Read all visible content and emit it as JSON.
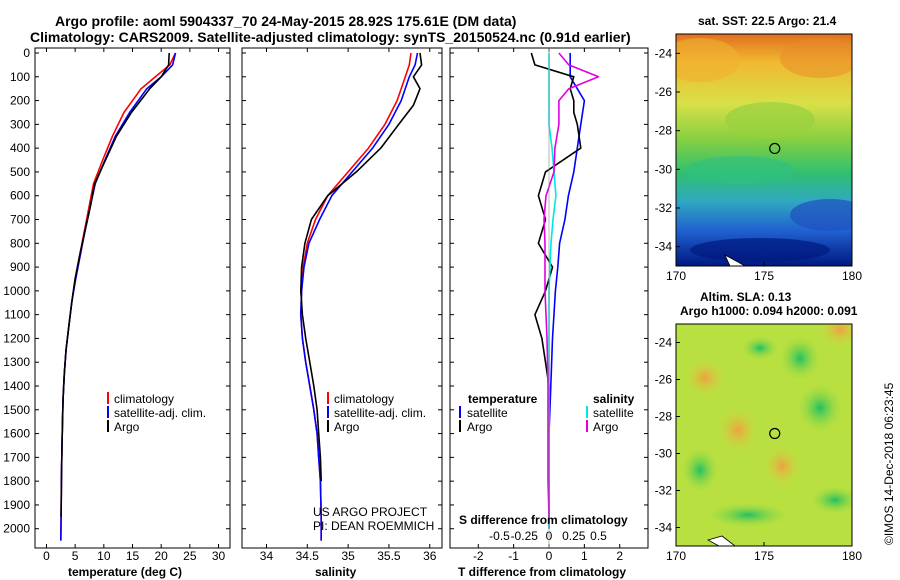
{
  "header": {
    "line1": "Argo profile: aoml 5904337_70 24-May-2015 28.92S 175.61E (DM data)",
    "line2": "Climatology: CARS2009. Satellite-adjusted climatology: synTS_20150524.nc (0.91d earlier)"
  },
  "colors": {
    "climatology": "#ff0000",
    "satellite": "#0000ff",
    "argo": "#000000",
    "satellite_salinity": "#00e5e5",
    "argo_salinity": "#e000e0"
  },
  "depth_axis": {
    "ticks": [
      "0",
      "100",
      "200",
      "300",
      "400",
      "500",
      "600",
      "700",
      "800",
      "900",
      "1000",
      "1100",
      "1200",
      "1300",
      "1400",
      "1500",
      "1600",
      "1700",
      "1800",
      "1900",
      "2000"
    ]
  },
  "panels": {
    "temperature": {
      "xlabel": "temperature (deg C)",
      "xticks": [
        "0",
        "5",
        "10",
        "15",
        "20",
        "25",
        "30"
      ],
      "legend": [
        "climatology",
        "satellite-adj. clim.",
        "Argo"
      ]
    },
    "salinity": {
      "xlabel": "salinity",
      "xticks": [
        "34",
        "34.5",
        "35",
        "35.5",
        "36"
      ],
      "legend": [
        "climatology",
        "satellite-adj. clim.",
        "Argo"
      ],
      "credit_line1": "US ARGO PROJECT",
      "credit_line2": "PI: DEAN ROEMMICH"
    },
    "difference": {
      "xlabel": "T difference from climatology",
      "xticks": [
        "-2",
        "-1",
        "0",
        "1",
        "2"
      ],
      "s_axis_title": "S difference from climatology",
      "s_xticks": [
        "-0.5",
        "-0.25",
        "0",
        "0.25",
        "0.5"
      ],
      "legend_temperature_title": "temperature",
      "legend_temperature": [
        "satellite",
        "Argo"
      ],
      "legend_salinity_title": "salinity",
      "legend_salinity": [
        "satellite",
        "Argo"
      ]
    }
  },
  "maps": {
    "sst": {
      "title": "sat. SST: 22.5 Argo: 21.4",
      "yticks": [
        "-24",
        "-26",
        "-28",
        "-30",
        "-32",
        "-34"
      ],
      "xticks": [
        "170",
        "175",
        "180"
      ]
    },
    "sla": {
      "title_line1": "Altim. SLA: 0.13",
      "title_line2": "Argo h1000: 0.094 h2000: 0.091",
      "yticks": [
        "-24",
        "-26",
        "-28",
        "-30",
        "-32",
        "-34"
      ],
      "xticks": [
        "170",
        "175",
        "180"
      ]
    },
    "profile_location": {
      "lon": 175.61,
      "lat": -28.92
    }
  },
  "watermark": "©IMOS 14-Dec-2018 06:23:45",
  "chart_data": [
    {
      "type": "line",
      "title": "",
      "xlabel": "temperature (deg C)",
      "ylabel": "",
      "xlim": [
        -2,
        32
      ],
      "ylim": [
        2060,
        0
      ],
      "series": [
        {
          "name": "climatology",
          "x": [
            22.5,
            21.5,
            19.0,
            16.5,
            13.5,
            11.5,
            9.8,
            8.2,
            7.4,
            6.6,
            5.8,
            5.0,
            4.4,
            3.9,
            3.4,
            3.1,
            2.9,
            2.8,
            2.7,
            2.6,
            2.55,
            2.5
          ],
          "y": [
            0,
            50,
            100,
            150,
            250,
            350,
            450,
            550,
            650,
            750,
            850,
            950,
            1050,
            1150,
            1250,
            1350,
            1450,
            1550,
            1650,
            1800,
            1950,
            2050
          ]
        },
        {
          "name": "satellite-adj. clim.",
          "x": [
            22.5,
            22.0,
            20.0,
            17.5,
            14.5,
            12.0,
            10.2,
            8.5,
            7.6,
            6.7,
            5.9,
            5.1,
            4.4,
            3.9,
            3.4,
            3.1,
            2.9,
            2.8,
            2.7,
            2.6,
            2.55,
            2.5
          ],
          "y": [
            0,
            50,
            100,
            150,
            250,
            350,
            450,
            550,
            650,
            750,
            850,
            950,
            1050,
            1150,
            1250,
            1350,
            1450,
            1550,
            1650,
            1800,
            1950,
            2050
          ]
        },
        {
          "name": "Argo",
          "x": [
            21.4,
            21.3,
            20.0,
            18.0,
            14.8,
            12.2,
            10.3,
            8.4,
            7.6,
            6.7,
            5.8,
            5.0,
            4.4,
            3.9,
            3.4,
            3.1,
            2.9,
            2.8,
            2.7,
            2.6,
            2.55
          ],
          "y": [
            0,
            50,
            100,
            150,
            250,
            350,
            450,
            550,
            650,
            750,
            850,
            950,
            1050,
            1150,
            1250,
            1350,
            1450,
            1550,
            1650,
            1800,
            1950
          ]
        }
      ]
    },
    {
      "type": "line",
      "title": "",
      "xlabel": "salinity",
      "ylabel": "",
      "xlim": [
        33.7,
        36.15
      ],
      "ylim": [
        2060,
        0
      ],
      "series": [
        {
          "name": "climatology",
          "x": [
            35.77,
            35.75,
            35.7,
            35.6,
            35.45,
            35.25,
            35.0,
            34.75,
            34.6,
            34.5,
            34.45,
            34.43,
            34.42,
            34.44,
            34.48,
            34.53,
            34.58,
            34.62,
            34.64,
            34.66,
            34.67,
            34.67
          ],
          "y": [
            0,
            50,
            100,
            200,
            300,
            400,
            500,
            600,
            700,
            800,
            900,
            1000,
            1100,
            1200,
            1300,
            1400,
            1500,
            1600,
            1700,
            1800,
            1950,
            2050
          ]
        },
        {
          "name": "satellite-adj. clim.",
          "x": [
            35.85,
            35.82,
            35.75,
            35.65,
            35.5,
            35.3,
            35.05,
            34.8,
            34.65,
            34.52,
            34.46,
            34.43,
            34.42,
            34.44,
            34.48,
            34.53,
            34.58,
            34.62,
            34.64,
            34.66,
            34.67,
            34.67
          ],
          "y": [
            0,
            50,
            100,
            200,
            300,
            400,
            500,
            600,
            700,
            800,
            900,
            1000,
            1100,
            1200,
            1300,
            1400,
            1500,
            1600,
            1700,
            1800,
            1950,
            2050
          ]
        },
        {
          "name": "Argo",
          "x": [
            35.88,
            35.9,
            35.8,
            35.88,
            35.8,
            35.62,
            35.4,
            35.1,
            34.75,
            34.55,
            34.47,
            34.43,
            34.42,
            34.44,
            34.48,
            34.53,
            34.58,
            34.62,
            34.64,
            34.66,
            34.67
          ],
          "y": [
            0,
            50,
            100,
            150,
            220,
            300,
            400,
            500,
            600,
            700,
            800,
            900,
            1000,
            1100,
            1200,
            1300,
            1400,
            1500,
            1600,
            1700,
            1800
          ]
        }
      ]
    },
    {
      "type": "line",
      "title": "",
      "xlabel": "T difference from climatology",
      "ylabel": "",
      "xlim": [
        -2.8,
        2.8
      ],
      "ylim": [
        2060,
        0
      ],
      "series": [
        {
          "name": "temperature satellite",
          "x": [
            0.6,
            0.6,
            1.0,
            0.9,
            0.8,
            0.7,
            0.55,
            0.45,
            0.3,
            0.25,
            0.18,
            0.1,
            0.05,
            0.0,
            0.0,
            0.0
          ],
          "y": [
            0,
            100,
            200,
            300,
            400,
            500,
            600,
            700,
            800,
            900,
            1000,
            1200,
            1400,
            1600,
            1800,
            2000
          ]
        },
        {
          "name": "temperature Argo",
          "x": [
            -0.5,
            -0.4,
            0.7,
            0.6,
            0.7,
            0.7,
            0.8,
            0.9,
            -0.1,
            -0.3,
            -0.1,
            -0.3,
            0.1,
            -0.1,
            -0.4,
            -0.2,
            -0.1,
            0.0,
            0.0,
            0.0
          ],
          "y": [
            0,
            50,
            100,
            150,
            200,
            250,
            300,
            400,
            500,
            600,
            700,
            800,
            900,
            1000,
            1100,
            1200,
            1300,
            1400,
            1600,
            1950
          ]
        },
        {
          "name": "salinity satellite",
          "x": [
            0.0,
            0.0,
            0.03,
            0.05,
            0.07,
            0.04,
            0.02,
            0.0,
            0.0,
            0.0
          ],
          "y": [
            0,
            300,
            400,
            500,
            600,
            700,
            800,
            1000,
            1500,
            2000
          ]
        },
        {
          "name": "salinity Argo",
          "x": [
            0.1,
            0.2,
            0.5,
            0.2,
            0.1,
            0.1,
            0.06,
            0.05,
            -0.03,
            -0.05,
            -0.04,
            -0.04,
            -0.02,
            -0.01,
            -0.01,
            -0.01,
            0.0
          ],
          "y": [
            0,
            50,
            100,
            150,
            200,
            300,
            400,
            500,
            600,
            700,
            800,
            1000,
            1200,
            1400,
            1600,
            1800,
            1950
          ]
        }
      ]
    }
  ]
}
